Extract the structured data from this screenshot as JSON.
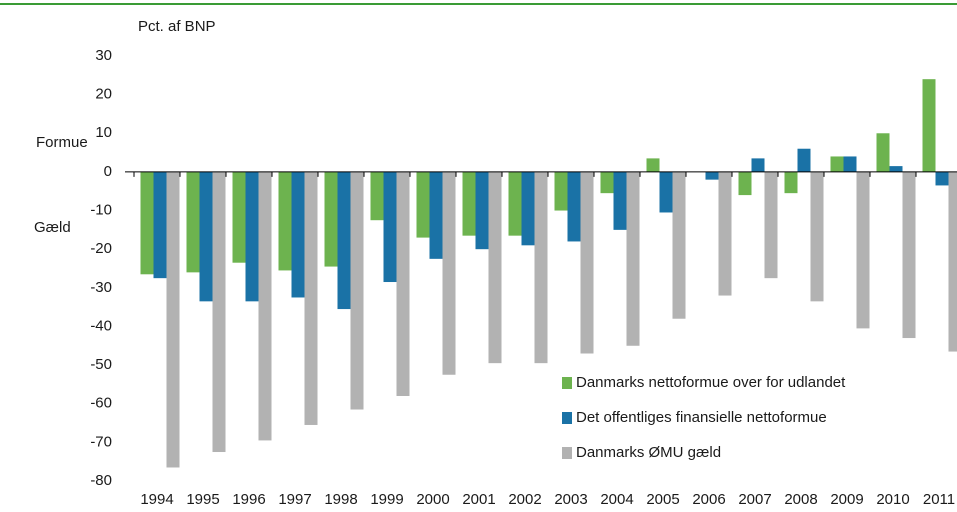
{
  "chart_data": {
    "type": "bar",
    "y_label": "Pct. af BNP",
    "annotations": [
      "Formue",
      "Gæld"
    ],
    "categories": [
      "1994",
      "1995",
      "1996",
      "1997",
      "1998",
      "1999",
      "2000",
      "2001",
      "2002",
      "2003",
      "2004",
      "2005",
      "2006",
      "2007",
      "2008",
      "2009",
      "2010",
      "2011"
    ],
    "series": [
      {
        "name": "Danmarks nettoformue over for udlandet",
        "color": "#6db34f",
        "values": [
          -26.5,
          -26,
          -23.5,
          -25.5,
          -24.5,
          -12.5,
          -17,
          -16.5,
          -16.5,
          -10,
          -5.5,
          3.5,
          0,
          -6,
          -5.5,
          4,
          10,
          24
        ]
      },
      {
        "name": "Det offentliges finansielle nettoformue",
        "color": "#1a72a6",
        "values": [
          -27.5,
          -33.5,
          -33.5,
          -32.5,
          -35.5,
          -28.5,
          -22.5,
          -20,
          -19,
          -18,
          -15,
          -10.5,
          -2,
          3.5,
          6,
          4,
          1.5,
          -3.5
        ]
      },
      {
        "name": "Danmarks ØMU gæld",
        "color": "#b2b2b2",
        "values": [
          -76.5,
          -72.5,
          -69.5,
          -65.5,
          -61.5,
          -58,
          -52.5,
          -49.5,
          -49.5,
          -47,
          -45,
          -38,
          -32,
          -27.5,
          -33.5,
          -40.5,
          -43,
          -46.5
        ]
      }
    ],
    "ylim": [
      -80,
      30
    ],
    "yticks": [
      30,
      20,
      10,
      0,
      -10,
      -20,
      -30,
      -40,
      -50,
      -60,
      -70,
      -80
    ],
    "grid": false,
    "legend": "lower right"
  }
}
